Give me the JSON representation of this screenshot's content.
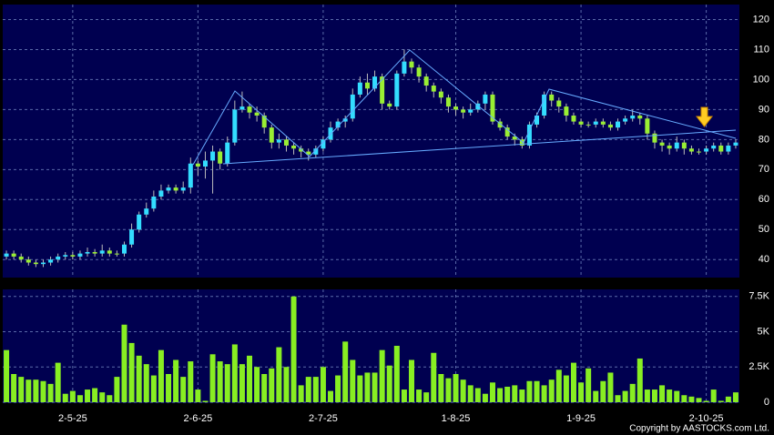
{
  "chart_data": {
    "type": "candlestick",
    "up_color": "#33ddff",
    "down_color": "#99ee33",
    "grid": true,
    "ylim": [
      34,
      125
    ],
    "yticks": [
      40,
      50,
      60,
      70,
      80,
      90,
      100,
      110,
      120
    ],
    "open": [
      41,
      42,
      41,
      40,
      39,
      38.5,
      39,
      40,
      41,
      41.5,
      41,
      42,
      42.5,
      42,
      43,
      42,
      42,
      45,
      50,
      55,
      57,
      61,
      63,
      64,
      63,
      64,
      72,
      71,
      73,
      76,
      72,
      79,
      90,
      91,
      89,
      88,
      84,
      79,
      80,
      78,
      77,
      76,
      75,
      77,
      80,
      84,
      86,
      87,
      95,
      99,
      97,
      101,
      92,
      91,
      102,
      106,
      104,
      101,
      98,
      96,
      94,
      91,
      90,
      89,
      90,
      92,
      95,
      86,
      84,
      81,
      80,
      78,
      85,
      88,
      95,
      93,
      91,
      88,
      86,
      85,
      85,
      86,
      85,
      84,
      86,
      87,
      88,
      87,
      82,
      79,
      78,
      77,
      79,
      77,
      76,
      76,
      77,
      78,
      76,
      78
    ],
    "high": [
      43,
      43,
      42,
      41,
      40,
      40,
      41,
      42,
      42.5,
      42.5,
      43,
      44,
      43.5,
      45,
      44,
      43,
      46,
      52,
      56,
      59,
      63,
      65,
      65,
      65,
      66,
      74,
      73,
      76,
      78,
      77,
      81,
      93,
      96,
      92,
      91,
      89,
      85,
      82,
      81,
      79,
      78,
      77,
      78,
      81,
      86,
      87,
      88,
      97,
      101,
      102,
      103,
      102,
      93,
      103,
      110,
      107,
      105,
      102,
      99,
      97,
      95,
      92,
      91,
      92,
      93,
      96,
      96,
      87,
      85,
      82,
      81,
      86,
      89,
      96,
      96,
      94,
      92,
      89,
      87,
      86,
      87,
      87,
      86,
      87,
      88,
      90,
      89,
      88,
      83,
      80,
      79,
      81,
      80,
      78,
      77,
      78,
      79,
      79,
      79,
      80
    ],
    "low": [
      40,
      40,
      39,
      38,
      37.5,
      37.5,
      38,
      39,
      40,
      40,
      40,
      41,
      41,
      41,
      41,
      41,
      41,
      44,
      49,
      54,
      56,
      60,
      62,
      62,
      62,
      62,
      68,
      67,
      62,
      70,
      71,
      78,
      89,
      87,
      86,
      82,
      77,
      77,
      76,
      75,
      74,
      73,
      74,
      76,
      79,
      83,
      84,
      86,
      94,
      95,
      96,
      90,
      90,
      90,
      101,
      102,
      99,
      96,
      94,
      92,
      89,
      88,
      87,
      88,
      89,
      90,
      85,
      83,
      80,
      78,
      77,
      77,
      84,
      87,
      91,
      89,
      86,
      85,
      84,
      84,
      84,
      84,
      83,
      83,
      85,
      86,
      85,
      80,
      77,
      76,
      75,
      76,
      75,
      75,
      75,
      75,
      76,
      75,
      75,
      77
    ],
    "close": [
      42,
      41,
      40,
      39,
      38.5,
      39,
      40,
      41,
      41.5,
      41,
      42,
      42.5,
      42,
      43,
      42,
      42,
      45,
      50,
      55,
      57,
      61,
      63,
      64,
      63,
      64,
      72,
      71,
      73,
      76,
      72,
      79,
      90,
      91,
      89,
      88,
      84,
      79,
      80,
      78,
      77,
      76,
      75,
      77,
      80,
      84,
      86,
      87,
      95,
      99,
      97,
      101,
      92,
      91,
      102,
      106,
      104,
      101,
      98,
      96,
      94,
      91,
      90,
      89,
      90,
      92,
      95,
      86,
      84,
      81,
      80,
      78,
      85,
      88,
      95,
      93,
      91,
      88,
      86,
      85,
      85,
      86,
      85,
      84,
      86,
      87,
      88,
      87,
      82,
      79,
      78,
      77,
      79,
      77,
      76,
      76,
      77,
      78,
      76,
      78,
      79
    ],
    "categories": [
      null,
      null,
      null,
      null,
      null,
      null,
      null,
      null,
      null,
      "2-5-25",
      null,
      null,
      null,
      null,
      null,
      null,
      null,
      null,
      null,
      null,
      null,
      null,
      null,
      null,
      null,
      null,
      "2-6-25",
      null,
      null,
      null,
      null,
      null,
      null,
      null,
      null,
      null,
      null,
      null,
      null,
      null,
      null,
      null,
      null,
      "2-7-25",
      null,
      null,
      null,
      null,
      null,
      null,
      null,
      null,
      null,
      null,
      null,
      null,
      null,
      null,
      null,
      null,
      null,
      "1-8-25",
      null,
      null,
      null,
      null,
      null,
      null,
      null,
      null,
      null,
      null,
      null,
      null,
      null,
      null,
      null,
      null,
      "1-9-25",
      null,
      null,
      null,
      null,
      null,
      null,
      null,
      null,
      null,
      null,
      null,
      null,
      null,
      null,
      null,
      null,
      "2-10-25",
      null,
      null,
      null,
      null
    ],
    "volume": {
      "color": "#88ee22",
      "ylim": [
        0,
        8000
      ],
      "yticks": [
        {
          "value": 0,
          "label": "0"
        },
        {
          "value": 2500,
          "label": "2.5K"
        },
        {
          "value": 5000,
          "label": "5K"
        },
        {
          "value": 7500,
          "label": "7.5K"
        }
      ],
      "values": [
        3700,
        2000,
        1800,
        1600,
        1600,
        1500,
        1300,
        2800,
        600,
        800,
        500,
        900,
        1000,
        700,
        500,
        1800,
        5500,
        4200,
        3300,
        2700,
        1900,
        3700,
        2000,
        3000,
        1800,
        2900,
        900,
        100,
        3400,
        2900,
        2700,
        4100,
        2700,
        3300,
        2500,
        2000,
        2400,
        3900,
        2500,
        7500,
        1200,
        1800,
        1800,
        2500,
        800,
        1900,
        4300,
        3000,
        1900,
        2100,
        2100,
        3700,
        2600,
        4000,
        900,
        3000,
        900,
        700,
        3500,
        2000,
        1700,
        2000,
        1600,
        1200,
        1000,
        600,
        1400,
        1000,
        1100,
        1200,
        900,
        1500,
        1500,
        1200,
        1600,
        2300,
        1900,
        2800,
        1400,
        2400,
        800,
        1500,
        2100,
        500,
        800,
        1300,
        3100,
        900,
        900,
        1200,
        900,
        800,
        500,
        400,
        300,
        100,
        900,
        100,
        400,
        700
      ]
    }
  },
  "footer": "Copyright by AASTOCKS.com Ltd."
}
